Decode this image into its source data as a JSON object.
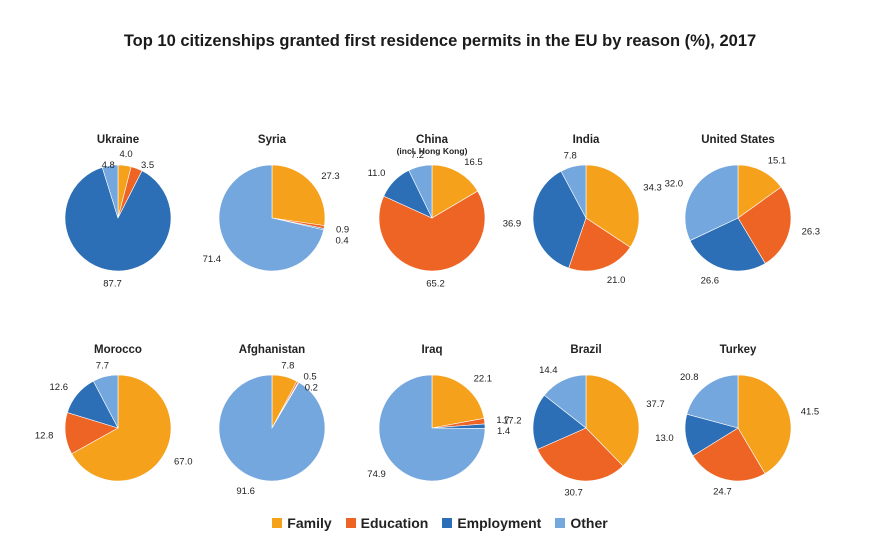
{
  "chart_data": {
    "type": "pie",
    "title": "Top 10 citizenships granted first residence permits in the EU by reason (%), 2017",
    "legend": [
      {
        "name": "Family",
        "color": "#f5a11c"
      },
      {
        "name": "Education",
        "color": "#ee6424"
      },
      {
        "name": "Employment",
        "color": "#2c6fb6"
      },
      {
        "name": "Other",
        "color": "#74a7dd"
      }
    ],
    "legend_position": "bottom",
    "pies": [
      {
        "name": "Ukraine",
        "subtitle": "",
        "values": [
          4.0,
          3.5,
          87.7,
          4.8
        ]
      },
      {
        "name": "Syria",
        "subtitle": "",
        "values": [
          27.3,
          0.9,
          0.4,
          71.4
        ]
      },
      {
        "name": "China",
        "subtitle": "(incl. Hong Kong)",
        "values": [
          16.5,
          65.2,
          11.0,
          7.2
        ]
      },
      {
        "name": "India",
        "subtitle": "",
        "values": [
          34.3,
          21.0,
          36.9,
          7.8
        ]
      },
      {
        "name": "United States",
        "subtitle": "",
        "values": [
          15.1,
          26.3,
          26.6,
          32.0
        ]
      },
      {
        "name": "Morocco",
        "subtitle": "",
        "values": [
          67.0,
          12.8,
          12.6,
          7.7
        ]
      },
      {
        "name": "Afghanistan",
        "subtitle": "",
        "values": [
          7.8,
          0.5,
          0.2,
          91.6
        ]
      },
      {
        "name": "Iraq",
        "subtitle": "",
        "values": [
          22.1,
          1.7,
          1.4,
          74.9
        ]
      },
      {
        "name": "Brazil",
        "subtitle": "",
        "values": [
          37.7,
          30.7,
          17.2,
          14.4
        ]
      },
      {
        "name": "Turkey",
        "subtitle": "",
        "values": [
          41.5,
          24.7,
          13.0,
          20.8
        ]
      }
    ]
  }
}
